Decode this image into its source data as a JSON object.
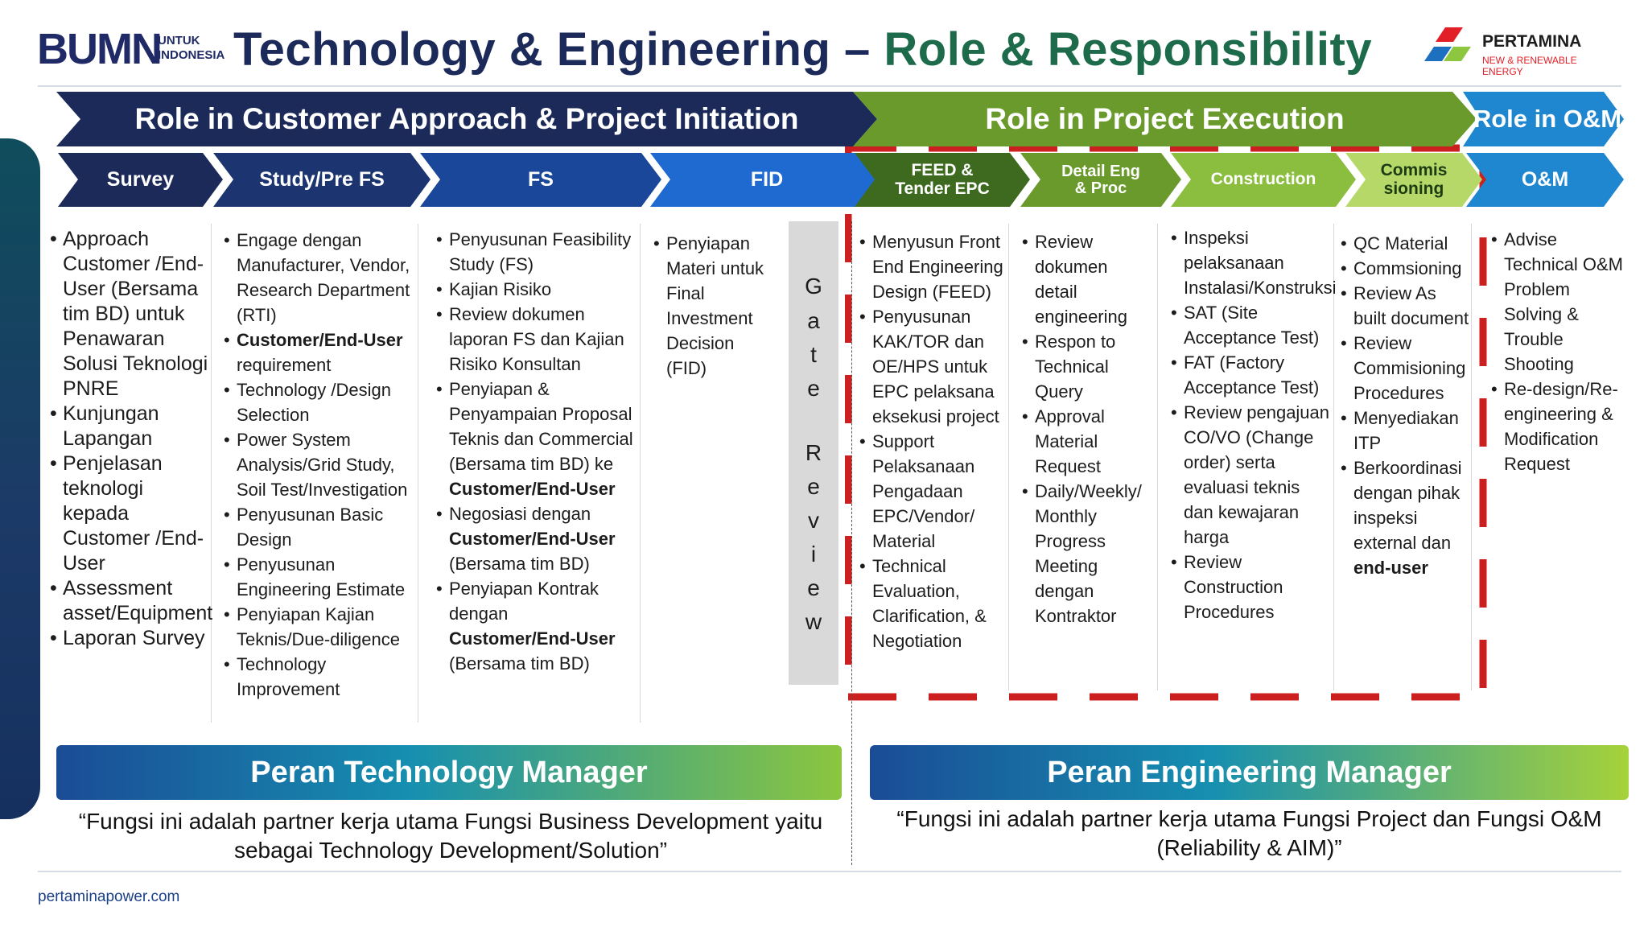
{
  "header": {
    "bumn_logo": {
      "brand": "BUMN",
      "line1": "UNTUK",
      "line2": "INDONESIA"
    },
    "title_part1": "Technology & Engineering – ",
    "title_part2": "Role & Responsibility",
    "pertamina_logo": {
      "name": "PERTAMINA",
      "tagline": "NEW & RENEWABLE ENERGY"
    }
  },
  "phases": {
    "initiation": "Role in Customer Approach & Project Initiation",
    "execution": "Role in Project Execution",
    "om": "Role in O&M"
  },
  "stages": {
    "survey": "Survey",
    "study": "Study/Pre FS",
    "fs": "FS",
    "fid": "FID",
    "feed_1": "FEED &",
    "feed_2": "Tender EPC",
    "detail_1": "Detail Eng",
    "detail_2": "& Proc",
    "construction": "Construction",
    "commis_1": "Commis",
    "commis_2": "sioning",
    "om": "O&M"
  },
  "survey": {
    "i1": "Approach",
    "i1b": "Customer /End-",
    "i1c": "User",
    "i1d": " (Bersama tim BD) untuk Penawaran Solusi Teknologi PNRE",
    "i2": "Kunjungan Lapangan",
    "i3": "Penjelasan teknologi kepada",
    "i3b": "Customer /End-User",
    "i4": "Assessment asset/Equipment",
    "i5": "Laporan Survey"
  },
  "study": {
    "i1": "Engage dengan Manufacturer, Vendor, Research Department (RTI)",
    "i2b": "Customer/End-User",
    "i2": " requirement",
    "i3": "Technology /Design Selection",
    "i4": "Power System Analysis/Grid Study, Soil Test/Investigation",
    "i5": "Penyusunan Basic Design",
    "i6": "Penyusunan Engineering Estimate",
    "i7": "Penyiapan Kajian Teknis/Due-diligence",
    "i8": "Technology Improvement"
  },
  "fs": {
    "i1": "Penyusunan Feasibility Study (FS)",
    "i2": "Kajian Risiko",
    "i3": "Review dokumen laporan FS dan Kajian Risiko Konsultan",
    "i4": "Penyiapan & Penyampaian Proposal Teknis dan Commercial (Bersama tim BD) ke",
    "i4b": "Customer/End-User",
    "i5": "Negosiasi dengan",
    "i5b": "Customer/End-User",
    "i5c": "(Bersama tim BD)",
    "i6": "Penyiapan Kontrak dengan",
    "i6b": "Customer/End-User",
    "i6c": "(Bersama tim BD)"
  },
  "fid": {
    "i1": "Penyiapan Materi untuk Final Investment Decision (FID)"
  },
  "gate_review": [
    "G",
    "a",
    "t",
    "e",
    "R",
    "e",
    "v",
    "i",
    "e",
    "w"
  ],
  "feed": {
    "i1": "Menyusun Front End Engineering Design (FEED)",
    "i2": "Penyusunan KAK/TOR dan OE/HPS untuk EPC pelaksana eksekusi project",
    "i3": "Support Pelaksanaan Pengadaan EPC/Vendor/ Material",
    "i4": "Technical Evaluation, Clarification, & Negotiation"
  },
  "detail": {
    "i1": "Review dokumen detail engineering",
    "i2": "Respon to Technical Query",
    "i3": "Approval Material Request",
    "i4": "Daily/Weekly/ Monthly Progress Meeting dengan Kontraktor"
  },
  "construction": {
    "i1": "Inspeksi pelaksanaan Instalasi/Konstruksi",
    "i2": "SAT (Site Acceptance Test)",
    "i3": "FAT (Factory Acceptance Test)",
    "i4": "Review pengajuan CO/VO (Change order) serta evaluasi teknis dan kewajaran harga",
    "i5": "Review Construction Procedures"
  },
  "commissioning": {
    "i1": "QC Material",
    "i2": "Commsioning",
    "i3": "Review As built document",
    "i4": "Review Commisioning Procedures",
    "i5": "Menyediakan ITP",
    "i6": "Berkoordinasi dengan pihak inspeksi external dan",
    "i6b": "end-user"
  },
  "om": {
    "i1": "Advise Technical O&M Problem Solving & Trouble Shooting",
    "i2": "Re-design/Re-engineering & Modification Request"
  },
  "roles": {
    "tech_manager": "Peran Technology Manager",
    "tech_quote": "“Fungsi ini adalah partner kerja utama Fungsi Business Development yaitu sebagai Technology Development/Solution”",
    "eng_manager": "Peran Engineering Manager",
    "eng_quote": "“Fungsi ini adalah partner kerja utama Fungsi Project dan Fungsi O&M (Reliability & AIM)”"
  },
  "footer": {
    "url": "pertaminapower.com"
  },
  "colors": {
    "navy": "#1c2a5a",
    "blue": "#1f6ad0",
    "green": "#6a9a2c",
    "light_green": "#a9cf57",
    "cyan": "#1aa0dc",
    "dash_red": "#cc1f1f"
  }
}
